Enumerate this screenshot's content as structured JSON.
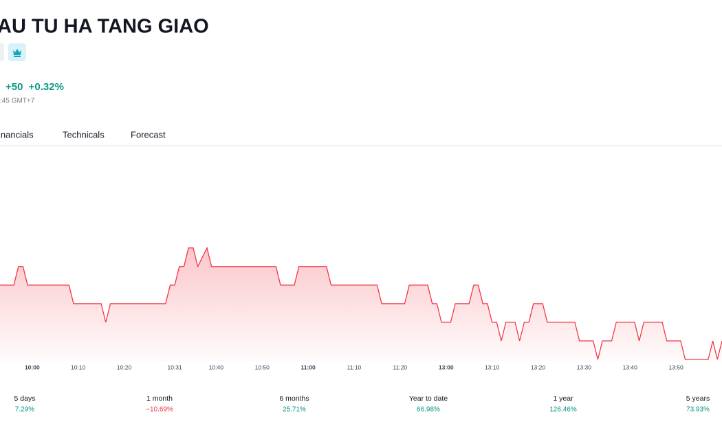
{
  "header": {
    "title": "AU TU HA TANG GIAO",
    "change": "+50",
    "change_percent": "+0.32%",
    "time": ":45 GMT+7"
  },
  "tabs": [
    "inancials",
    "Technicals",
    "Forecast"
  ],
  "chart_data": {
    "type": "line",
    "x": [
      "09:53",
      "09:56",
      "09:57",
      "09:58",
      "09:59",
      "10:08",
      "10:09",
      "10:15",
      "10:16",
      "10:17",
      "10:29",
      "10:30",
      "10:31",
      "10:32",
      "10:33",
      "10:34",
      "10:35",
      "10:36",
      "10:38",
      "10:39",
      "10:53",
      "10:54",
      "10:57",
      "10:58",
      "11:04",
      "11:05",
      "11:15",
      "11:16",
      "11:21",
      "11:22",
      "11:26",
      "11:27",
      "11:28",
      "11:29",
      "13:01",
      "13:02",
      "13:05",
      "13:06",
      "13:07",
      "13:08",
      "13:09",
      "13:10",
      "13:11",
      "13:12",
      "13:13",
      "13:15",
      "13:16",
      "13:17",
      "13:18",
      "13:19",
      "13:21",
      "13:22",
      "13:28",
      "13:29",
      "13:32",
      "13:33",
      "13:34",
      "13:36",
      "13:37",
      "13:41",
      "13:42",
      "13:43",
      "13:47",
      "13:48",
      "13:51",
      "13:52",
      "13:57",
      "13:58",
      "13:59",
      "14:00"
    ],
    "series": [
      {
        "color": "#f23645",
        "values": [
          15800,
          15800,
          15850,
          15850,
          15800,
          15800,
          15750,
          15750,
          15700,
          15750,
          15750,
          15800,
          15800,
          15850,
          15850,
          15900,
          15900,
          15850,
          15900,
          15850,
          15850,
          15800,
          15800,
          15850,
          15850,
          15800,
          15800,
          15750,
          15750,
          15800,
          15800,
          15750,
          15750,
          15700,
          15700,
          15750,
          15750,
          15800,
          15800,
          15750,
          15750,
          15700,
          15700,
          15650,
          15700,
          15700,
          15650,
          15700,
          15700,
          15750,
          15750,
          15700,
          15700,
          15650,
          15650,
          15600,
          15650,
          15650,
          15700,
          15700,
          15650,
          15700,
          15700,
          15650,
          15650,
          15600,
          15600,
          15650,
          15600,
          15650
        ]
      }
    ],
    "xlim": [
      "09:53",
      "14:00"
    ],
    "xticks": [
      "10:00",
      "10:10",
      "10:20",
      "10:31",
      "10:40",
      "10:50",
      "11:00",
      "11:10",
      "11:20",
      "13:00",
      "13:10",
      "13:20",
      "13:30",
      "13:40",
      "13:50"
    ],
    "ylim": [
      15600,
      16175
    ]
  },
  "performance": {
    "items": [
      {
        "label": "5 days",
        "value": "7.29%"
      },
      {
        "label": "1 month",
        "value": "−10.69%"
      },
      {
        "label": "6 months",
        "value": "25.71%"
      },
      {
        "label": "Year to date",
        "value": "66.98%"
      },
      {
        "label": "1 year",
        "value": "126.46%"
      },
      {
        "label": "5 years",
        "value": "73.93%"
      }
    ]
  }
}
